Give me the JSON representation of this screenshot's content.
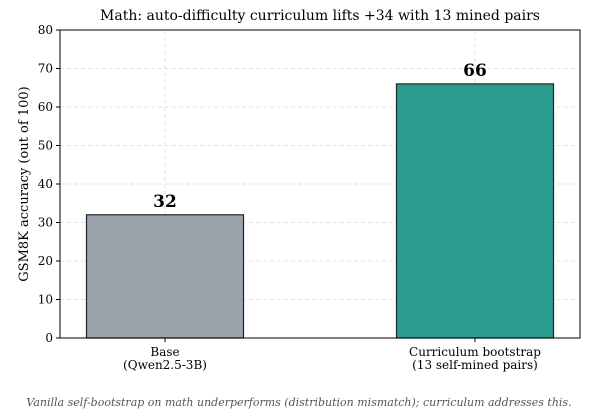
{
  "chart_data": {
    "type": "bar",
    "title": "Math: auto-difficulty curriculum lifts +34 with 13 mined pairs",
    "y_label": "GSM8K accuracy (out of 100)",
    "categories": [
      "Base\n(Qwen2.5-3B)",
      "Curriculum bootstrap\n(13 self-mined pairs)"
    ],
    "values": [
      32,
      66
    ],
    "colors": [
      "#9aa3ab",
      "#2a9d8f"
    ],
    "ylim": [
      0,
      80
    ],
    "yticks": [
      0,
      10,
      20,
      30,
      40,
      50,
      60,
      70,
      80
    ],
    "grid": true,
    "caption": "Vanilla self-bootstrap on math underperforms (distribution mismatch); curriculum addresses this."
  }
}
